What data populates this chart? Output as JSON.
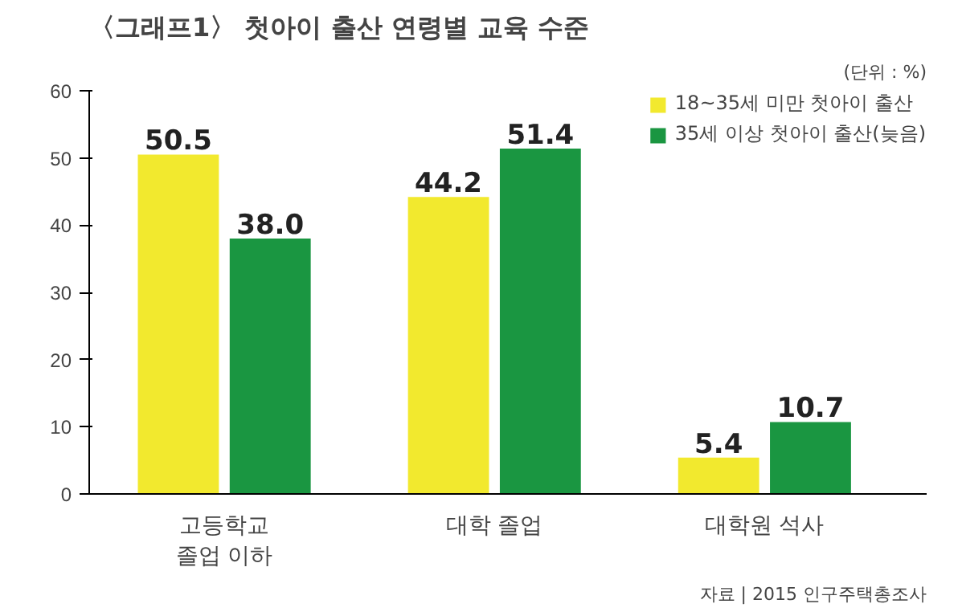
{
  "chart_data": {
    "type": "bar",
    "title": "〈그래프1〉 첫아이 출산 연령별 교육 수준",
    "categories": [
      "고등학교\n졸업 이하",
      "대학 졸업",
      "대학원 석사"
    ],
    "series": [
      {
        "name": "18~35세 미만 첫아이 출산",
        "color": "#f2e92e",
        "values": [
          50.5,
          44.2,
          5.4
        ],
        "value_labels": [
          "50.5",
          "44.2",
          "5.4"
        ]
      },
      {
        "name": "35세 이상 첫아이 출산(늦음)",
        "color": "#1a9641",
        "values": [
          38.0,
          51.4,
          10.7
        ],
        "value_labels": [
          "38.0",
          "51.4",
          "10.7"
        ]
      }
    ],
    "ylim": [
      0,
      60
    ],
    "yticks": [
      0,
      10,
      20,
      30,
      40,
      50,
      60
    ],
    "grid": false,
    "legend": "top right",
    "annotations": [
      "(단위 : %)",
      "자료 | 2015 인구주택총조사"
    ]
  }
}
